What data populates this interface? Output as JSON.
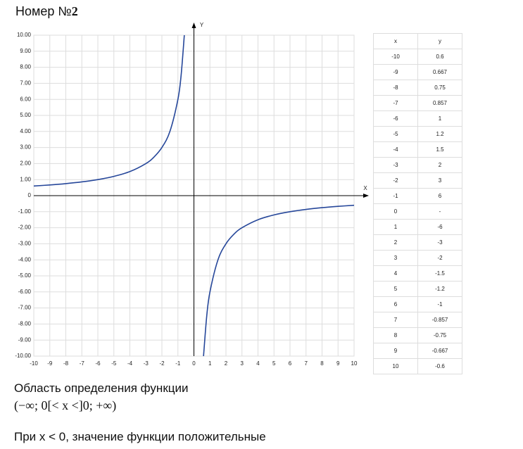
{
  "title": "Номер №",
  "number": 2,
  "chart_data": {
    "type": "line",
    "x_label": "X",
    "y_label": "Y",
    "x": [
      -10,
      -9,
      -8,
      -7,
      -6,
      -5,
      -4,
      -3,
      -2.5,
      -2,
      -1.5,
      -1,
      -0.8,
      -0.6,
      0,
      0.6,
      0.8,
      1,
      1.5,
      2,
      2.5,
      3,
      4,
      5,
      6,
      7,
      8,
      9,
      10
    ],
    "values": [
      0.6,
      0.667,
      0.75,
      0.857,
      1,
      1.2,
      1.5,
      2,
      2.4,
      3,
      4,
      6,
      7.5,
      10,
      null,
      -10,
      -7.5,
      -6,
      -4,
      -3,
      -2.4,
      -2,
      -1.5,
      -1.2,
      -1,
      -0.857,
      -0.75,
      -0.667,
      -0.6
    ],
    "color": "#26479a",
    "xlim": [
      -10,
      10
    ],
    "ylim": [
      -10,
      10
    ],
    "xticks": [
      -10,
      -9,
      -8,
      -7,
      -6,
      -5,
      -4,
      -3,
      -2,
      -1,
      0,
      1,
      2,
      3,
      4,
      5,
      6,
      7,
      8,
      9,
      10
    ],
    "yticks": [
      {
        "value": 10,
        "label": "10.00"
      },
      {
        "value": 9,
        "label": "9.00"
      },
      {
        "value": 8,
        "label": "8.00"
      },
      {
        "value": 7,
        "label": "7.00"
      },
      {
        "value": 6,
        "label": "6.00"
      },
      {
        "value": 5,
        "label": "5.00"
      },
      {
        "value": 4,
        "label": "4.00"
      },
      {
        "value": 3,
        "label": "3.00"
      },
      {
        "value": 2,
        "label": "2.00"
      },
      {
        "value": 1,
        "label": "1.00"
      },
      0,
      {
        "value": -1,
        "label": "-1.00"
      },
      {
        "value": -2,
        "label": "-2.00"
      },
      {
        "value": -3,
        "label": "-3.00"
      },
      {
        "value": -4,
        "label": "-4.00"
      },
      {
        "value": -5,
        "label": "-5.00"
      },
      {
        "value": -6,
        "label": "-6.00"
      },
      {
        "value": -7,
        "label": "-7.00"
      },
      {
        "value": -8,
        "label": "-8.00"
      },
      {
        "value": -9,
        "label": "-9.00"
      },
      {
        "value": -10,
        "label": "-10.00"
      }
    ],
    "grid": true
  },
  "table": {
    "header": [
      "x",
      "y"
    ],
    "rows": [
      [
        -10,
        0.6
      ],
      [
        -9,
        0.667
      ],
      [
        -8,
        0.75
      ],
      [
        -7,
        0.857
      ],
      [
        -6,
        1
      ],
      [
        -5,
        1.2
      ],
      [
        -4,
        1.5
      ],
      [
        -3,
        2
      ],
      [
        -2,
        3
      ],
      [
        -1,
        6
      ],
      [
        0,
        "-"
      ],
      [
        1,
        -6
      ],
      [
        2,
        -3
      ],
      [
        3,
        -2
      ],
      [
        4,
        -1.5
      ],
      [
        5,
        -1.2
      ],
      [
        6,
        -1
      ],
      [
        7,
        -0.857
      ],
      [
        8,
        -0.75
      ],
      [
        9,
        -0.667
      ],
      [
        10,
        -0.6
      ]
    ]
  },
  "domain_label": "Область определения функции",
  "domain": "(−∞; 0[< x <]0; +∞)",
  "note": "При x < 0, значение функции положительные"
}
